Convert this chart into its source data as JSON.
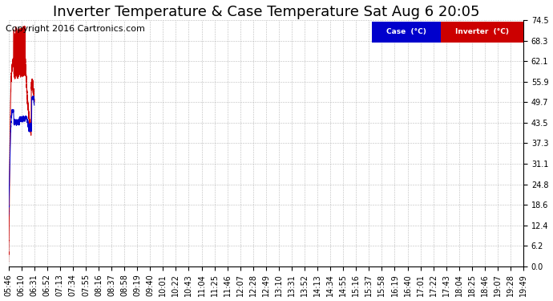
{
  "title": "Inverter Temperature & Case Temperature Sat Aug 6 20:05",
  "copyright": "Copyright 2016 Cartronics.com",
  "legend_case_label": "Case  (°C)",
  "legend_inverter_label": "Inverter  (°C)",
  "case_color": "#0000cc",
  "inverter_color": "#cc0000",
  "legend_case_bg": "#0000cc",
  "legend_inverter_bg": "#cc0000",
  "ylim": [
    0.0,
    74.5
  ],
  "yticks": [
    0.0,
    6.2,
    12.4,
    18.6,
    24.8,
    31.1,
    37.3,
    43.5,
    49.7,
    55.9,
    62.1,
    68.3,
    74.5
  ],
  "bg_color": "#ffffff",
  "plot_bg_color": "#ffffff",
  "grid_color": "#aaaaaa",
  "title_fontsize": 13,
  "copyright_fontsize": 8,
  "tick_fontsize": 7,
  "x_labels": [
    "05:46",
    "06:10",
    "06:31",
    "06:52",
    "07:13",
    "07:34",
    "07:55",
    "08:16",
    "08:37",
    "08:58",
    "09:19",
    "09:40",
    "10:01",
    "10:22",
    "10:43",
    "11:04",
    "11:25",
    "11:46",
    "12:07",
    "12:28",
    "12:49",
    "13:10",
    "13:31",
    "13:52",
    "14:13",
    "14:34",
    "14:55",
    "15:16",
    "15:37",
    "15:58",
    "16:19",
    "16:40",
    "17:01",
    "17:22",
    "17:43",
    "18:04",
    "18:25",
    "18:46",
    "19:07",
    "19:28",
    "19:49"
  ]
}
